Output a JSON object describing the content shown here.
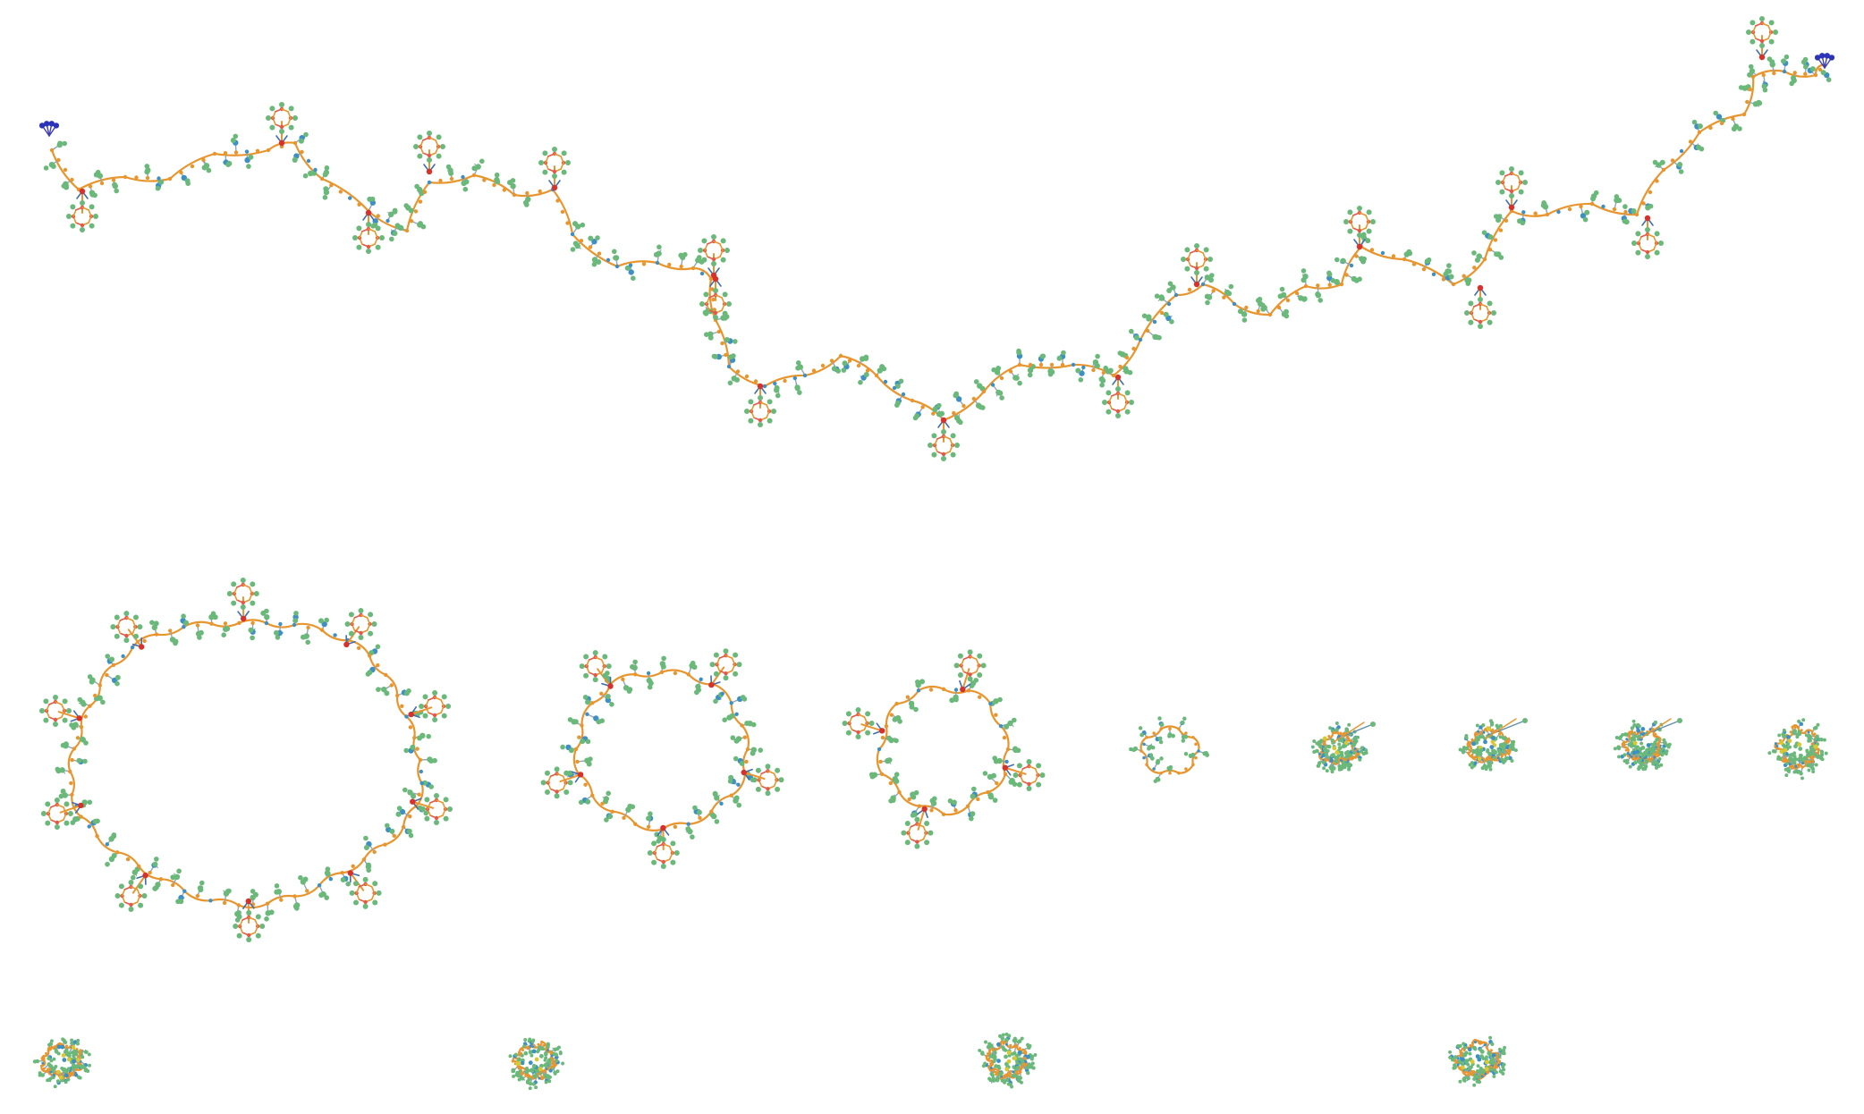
{
  "figure": {
    "description_visible_text": "",
    "structures": [
      {
        "id": "polymer-chain-linear",
        "shape": "chain",
        "spokes": 16
      },
      {
        "id": "polymer-ring-large",
        "shape": "ring",
        "spokes": 10
      },
      {
        "id": "polymer-ring-medium",
        "shape": "ring",
        "spokes": 5
      },
      {
        "id": "polymer-ring-small",
        "shape": "ring",
        "spokes": 4
      },
      {
        "id": "polymer-ring-tiny",
        "shape": "ring",
        "spokes": 0
      },
      {
        "id": "collapsed-coil-1",
        "shape": "coil",
        "spokes": 0
      },
      {
        "id": "collapsed-coil-2",
        "shape": "coil",
        "spokes": 0
      },
      {
        "id": "collapsed-coil-3",
        "shape": "coil",
        "spokes": 0
      },
      {
        "id": "collapsed-coil-4",
        "shape": "coil",
        "spokes": 0
      },
      {
        "id": "collapsed-coil-5",
        "shape": "coil",
        "spokes": 0
      },
      {
        "id": "collapsed-coil-6",
        "shape": "coil",
        "spokes": 0
      },
      {
        "id": "collapsed-coil-7",
        "shape": "coil",
        "spokes": 0
      },
      {
        "id": "collapsed-coil-8",
        "shape": "coil",
        "spokes": 0
      }
    ],
    "colors": {
      "backbone": "#e8952e",
      "branch_node": "#d7312b",
      "carbon": "#6ab87a",
      "oxygen": "#3d8fc4",
      "nitrogen": "#e05a4a",
      "terminal": "#2b33b8",
      "sulfur": "#d9c832"
    }
  }
}
